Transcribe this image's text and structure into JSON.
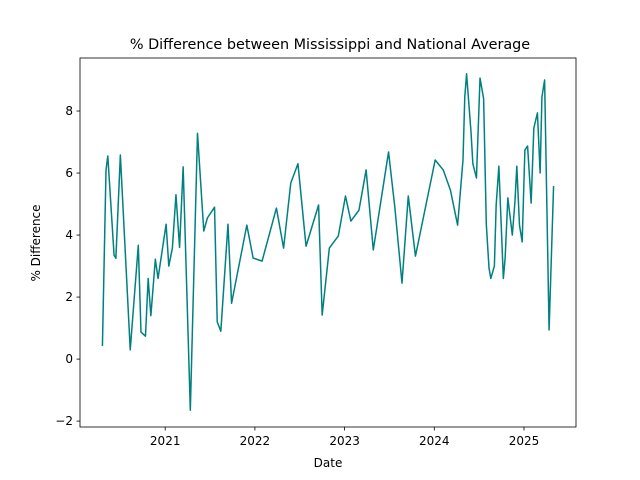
{
  "chart_data": {
    "type": "line",
    "title": "% Difference between Mississippi and National Average",
    "x_label": "Date",
    "y_label": "% Difference",
    "x": [
      2020.3,
      2020.34,
      2020.36,
      2020.43,
      2020.45,
      2020.5,
      2020.61,
      2020.7,
      2020.73,
      2020.78,
      2020.81,
      2020.84,
      2020.89,
      2020.92,
      2021.01,
      2021.04,
      2021.08,
      2021.12,
      2021.16,
      2021.2,
      2021.28,
      2021.36,
      2021.43,
      2021.47,
      2021.55,
      2021.58,
      2021.62,
      2021.7,
      2021.74,
      2021.91,
      2021.98,
      2022.08,
      2022.24,
      2022.32,
      2022.4,
      2022.48,
      2022.57,
      2022.71,
      2022.75,
      2022.83,
      2022.93,
      2023.01,
      2023.07,
      2023.16,
      2023.24,
      2023.32,
      2023.49,
      2023.56,
      2023.64,
      2023.71,
      2023.79,
      2024.01,
      2024.1,
      2024.18,
      2024.26,
      2024.32,
      2024.34,
      2024.36,
      2024.41,
      2024.43,
      2024.47,
      2024.51,
      2024.55,
      2024.58,
      2024.61,
      2024.63,
      2024.67,
      2024.69,
      2024.72,
      2024.77,
      2024.79,
      2024.82,
      2024.87,
      2024.9,
      2024.92,
      2024.95,
      2024.98,
      2025.01,
      2025.04,
      2025.08,
      2025.11,
      2025.15,
      2025.18,
      2025.2,
      2025.23,
      2025.28,
      2025.33
    ],
    "series": [
      {
        "name": "% Difference",
        "color": "#008080",
        "values": [
          0.42,
          6.1,
          6.55,
          3.35,
          3.25,
          6.58,
          0.3,
          3.67,
          0.87,
          0.74,
          2.6,
          1.4,
          3.22,
          2.6,
          4.35,
          3.0,
          3.58,
          5.3,
          3.6,
          6.2,
          -1.65,
          7.28,
          4.13,
          4.55,
          4.9,
          1.2,
          0.9,
          4.35,
          1.8,
          4.32,
          3.26,
          3.16,
          4.87,
          3.58,
          5.68,
          6.3,
          3.64,
          4.97,
          1.42,
          3.58,
          3.97,
          5.26,
          4.45,
          4.8,
          6.1,
          3.52,
          6.68,
          4.9,
          2.45,
          5.26,
          3.32,
          6.42,
          6.1,
          5.45,
          4.32,
          6.42,
          8.45,
          9.2,
          7.3,
          6.3,
          5.84,
          9.06,
          8.4,
          4.35,
          2.94,
          2.6,
          3.0,
          4.97,
          6.22,
          2.6,
          3.26,
          5.2,
          4.0,
          5.1,
          6.22,
          4.32,
          3.78,
          6.74,
          6.87,
          5.03,
          7.45,
          7.94,
          6.0,
          8.45,
          9.0,
          0.94,
          5.58
        ]
      }
    ],
    "xlim": [
      2020.05,
      2025.58
    ],
    "xticks": [
      2021,
      2022,
      2023,
      2024,
      2025
    ],
    "ylim": [
      -2.19,
      9.71
    ],
    "yticks": [
      {
        "value": -2,
        "label": "−2"
      },
      0,
      2,
      4,
      6,
      8
    ]
  }
}
